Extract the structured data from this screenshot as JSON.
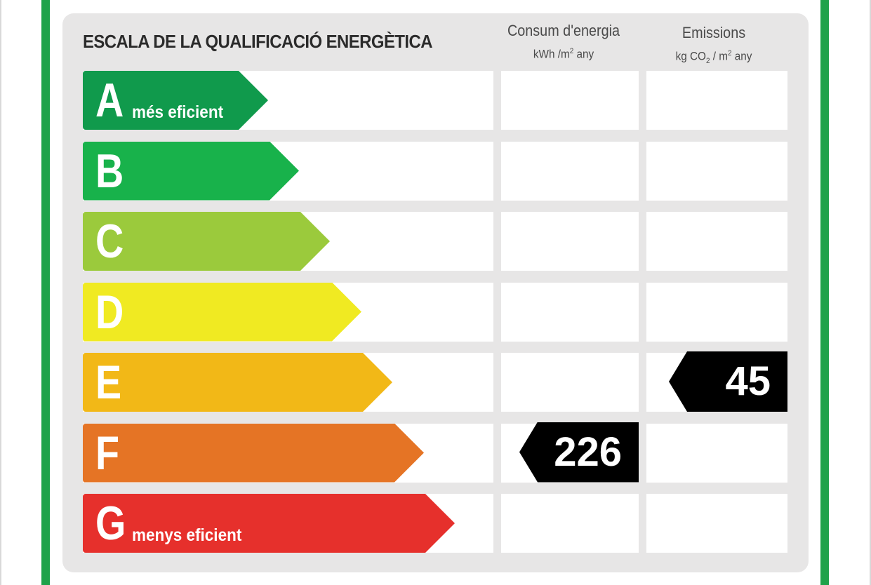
{
  "title": "ESCALA DE LA QUALIFICACIÓ ENERGÈTICA",
  "columns": {
    "energy": {
      "label": "Consum d'energia",
      "unit_prefix": "kWh /m",
      "unit_exp": "2",
      "unit_suffix": " any"
    },
    "emissions": {
      "label": "Emissions",
      "unit_prefix": "kg CO",
      "unit_sub": "2",
      "unit_mid": "  / m",
      "unit_exp": "2",
      "unit_suffix": " any"
    }
  },
  "ratings": [
    {
      "letter": "A",
      "sublabel": "més eficient",
      "color": "#109a4c"
    },
    {
      "letter": "B",
      "sublabel": "",
      "color": "#18b24b"
    },
    {
      "letter": "C",
      "sublabel": "",
      "color": "#9bca3c"
    },
    {
      "letter": "D",
      "sublabel": "",
      "color": "#f0ea22"
    },
    {
      "letter": "E",
      "sublabel": "",
      "color": "#f2b817"
    },
    {
      "letter": "F",
      "sublabel": "",
      "color": "#e57425"
    },
    {
      "letter": "G",
      "sublabel": "menys eficient",
      "color": "#e6302c"
    }
  ],
  "results": {
    "energy": {
      "value": "226",
      "rating": "F"
    },
    "emissions": {
      "value": "45",
      "rating": "E"
    }
  },
  "frame_color": "#1fa24a"
}
